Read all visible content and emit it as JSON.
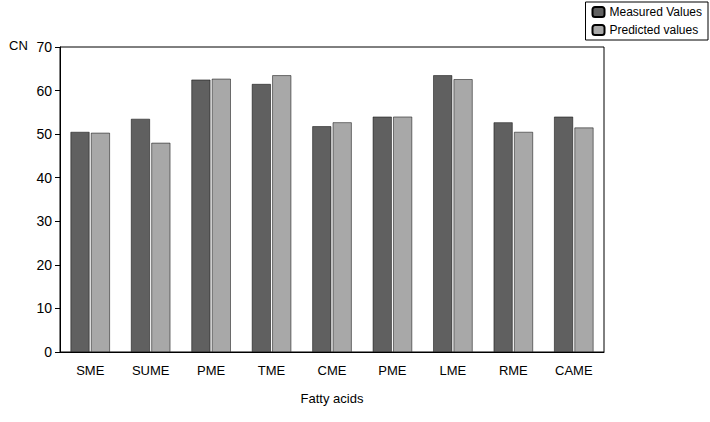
{
  "chart_data": {
    "type": "bar",
    "x_label": "Fatty acids",
    "y_label": "CN",
    "categories": [
      "SME",
      "SUME",
      "PME",
      "TME",
      "CME",
      "PME",
      "LME",
      "RME",
      "CAME"
    ],
    "series": [
      {
        "name": "Measured Values",
        "color": "#606060",
        "values": [
          50.5,
          53.5,
          62.5,
          61.5,
          51.8,
          54,
          63.5,
          52.7,
          54
        ]
      },
      {
        "name": "Predicted values",
        "color": "#a8a8a8",
        "values": [
          50.3,
          48,
          62.7,
          63.5,
          52.7,
          54,
          62.6,
          50.5,
          51.5
        ]
      }
    ],
    "ylim": [
      0,
      70
    ],
    "yticks": [
      0,
      10,
      20,
      30,
      40,
      50,
      60,
      70
    ],
    "grid": false,
    "legend": "upper right"
  }
}
